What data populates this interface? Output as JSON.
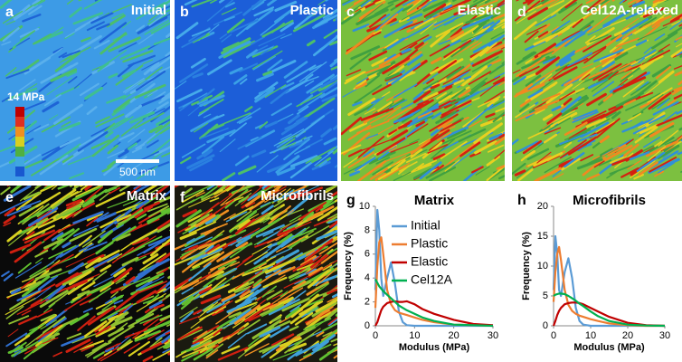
{
  "panels": [
    {
      "letter": "a",
      "title": "Initial"
    },
    {
      "letter": "b",
      "title": "Plastic"
    },
    {
      "letter": "c",
      "title": "Elastic"
    },
    {
      "letter": "d",
      "title": "Cel12A-relaxed"
    },
    {
      "letter": "e",
      "title": "Matrix"
    },
    {
      "letter": "f",
      "title": "Microfibrils"
    }
  ],
  "colorbar_label": "14 MPa",
  "scale_bar_label": "500 nm",
  "chart_data": [
    {
      "type": "line",
      "letter": "g",
      "title": "Matrix",
      "x_label": "Modulus (MPa)",
      "y_label": "Frequency (%)",
      "x": [
        0,
        0.5,
        1,
        1.5,
        2,
        3,
        4,
        5,
        6,
        7,
        8,
        10,
        12,
        15,
        20,
        25,
        30
      ],
      "xlim": [
        0,
        30
      ],
      "xticks": [
        0,
        10,
        20,
        30
      ],
      "ylim": [
        0,
        10
      ],
      "yticks": [
        0,
        2,
        4,
        6,
        8,
        10
      ],
      "series": [
        {
          "name": "Initial",
          "color": "#5b9bd5",
          "values": [
            3,
            9.7,
            8,
            4,
            2.5,
            4,
            5.3,
            3.5,
            1.2,
            0.3,
            0.05,
            0,
            0,
            0,
            0,
            0,
            0
          ]
        },
        {
          "name": "Plastic",
          "color": "#ed7d31",
          "values": [
            1.5,
            5,
            7,
            7.4,
            6,
            3,
            1.8,
            1.3,
            1.1,
            1,
            0.9,
            0.7,
            0.5,
            0.3,
            0.1,
            0.05,
            0
          ]
        },
        {
          "name": "Elastic",
          "color": "#c00000",
          "values": [
            0,
            0.3,
            0.8,
            1.3,
            1.6,
            1.9,
            2,
            2.05,
            2,
            2,
            2.05,
            1.8,
            1.4,
            1,
            0.5,
            0.15,
            0.05
          ]
        },
        {
          "name": "Cel12A",
          "color": "#00b050",
          "values": [
            3.9,
            3.6,
            3.3,
            3.1,
            2.9,
            2.6,
            2.3,
            2,
            1.7,
            1.5,
            1.3,
            1,
            0.7,
            0.4,
            0.1,
            0.05,
            0
          ]
        }
      ]
    },
    {
      "type": "line",
      "letter": "h",
      "title": "Microfibrils",
      "x_label": "Modulus (MPa)",
      "y_label": "Frequency (%)",
      "x": [
        0,
        0.5,
        1,
        1.5,
        2,
        3,
        4,
        5,
        6,
        7,
        8,
        10,
        12,
        15,
        20,
        25,
        30
      ],
      "xlim": [
        0,
        30
      ],
      "xticks": [
        0,
        10,
        20,
        30
      ],
      "ylim": [
        0,
        20
      ],
      "yticks": [
        0,
        5,
        10,
        15,
        20
      ],
      "series": [
        {
          "color": "#5b9bd5",
          "values": [
            6,
            15,
            12,
            6,
            5,
            9,
            11.3,
            8,
            3,
            0.8,
            0.2,
            0,
            0,
            0,
            0,
            0,
            0
          ]
        },
        {
          "color": "#ed7d31",
          "values": [
            4,
            9,
            12,
            13.2,
            11,
            6,
            3.5,
            2.5,
            2,
            1.7,
            1.5,
            1.1,
            0.8,
            0.4,
            0.1,
            0,
            0
          ]
        },
        {
          "color": "#c00000",
          "values": [
            0,
            0.8,
            1.8,
            2.5,
            3,
            3.6,
            3.8,
            3.9,
            3.9,
            3.8,
            3.6,
            3,
            2.4,
            1.5,
            0.5,
            0.1,
            0
          ]
        },
        {
          "color": "#00b050",
          "values": [
            5,
            5.2,
            5.3,
            5.4,
            5.4,
            5.3,
            5,
            4.6,
            4.2,
            3.7,
            3.3,
            2.4,
            1.6,
            0.8,
            0.2,
            0.05,
            0
          ]
        }
      ]
    }
  ]
}
